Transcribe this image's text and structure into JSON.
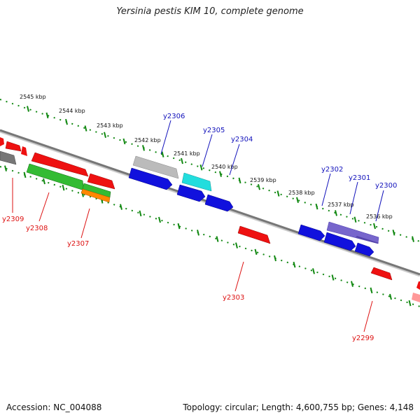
{
  "title": "Yersinia pestis KIM 10, complete genome",
  "footer": {
    "accession": "Accession: NC_004088",
    "summary": "Topology: circular; Length: 4,600,755 bp; Genes: 4,148"
  },
  "colors": {
    "backbone": "#777777",
    "tick": "#118811",
    "label_forward": "#1111bb",
    "label_reverse": "#dd1111"
  },
  "kbp_labels": [
    "2545 kbp",
    "2544 kbp",
    "2543 kbp",
    "2542 kbp",
    "2541 kbp",
    "2540 kbp",
    "2539 kbp",
    "2538 kbp",
    "2537 kbp",
    "2536 kbp"
  ],
  "genes": [
    {
      "label": "y2306",
      "color": "#1111bb"
    },
    {
      "label": "y2305",
      "color": "#1111bb"
    },
    {
      "label": "y2304",
      "color": "#1111bb"
    },
    {
      "label": "y2302",
      "color": "#1111bb"
    },
    {
      "label": "y2301",
      "color": "#1111bb"
    },
    {
      "label": "y2300",
      "color": "#1111bb"
    },
    {
      "label": "y2309",
      "color": "#dd1111"
    },
    {
      "label": "y2308",
      "color": "#dd1111"
    },
    {
      "label": "y2307",
      "color": "#dd1111"
    },
    {
      "label": "y2303",
      "color": "#dd1111"
    },
    {
      "label": "y2299",
      "color": "#dd1111"
    }
  ]
}
